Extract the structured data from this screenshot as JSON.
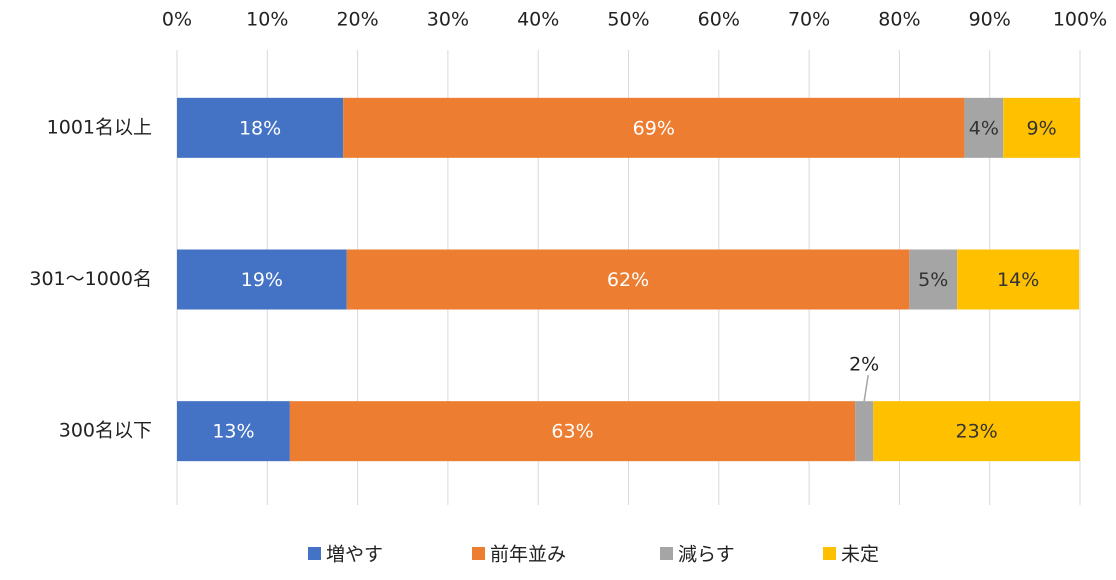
{
  "chart_data": {
    "type": "stacked-bar-horizontal",
    "categories": [
      "1001名以上",
      "301～1000名",
      "300名以下"
    ],
    "series": [
      {
        "name": "増やす",
        "color": "#4472c4",
        "values": [
          18.4,
          18.8,
          12.5
        ],
        "value_labels": [
          "18%",
          "19%",
          "13%"
        ]
      },
      {
        "name": "前年並み",
        "color": "#ed7d31",
        "values": [
          68.8,
          62.3,
          62.6
        ],
        "value_labels": [
          "69%",
          "62%",
          "63%"
        ]
      },
      {
        "name": "減らす",
        "color": "#a5a5a5",
        "values": [
          4.3,
          5.3,
          2.0
        ],
        "value_labels": [
          "4%",
          "5%",
          "2%"
        ]
      },
      {
        "name": "未定",
        "color": "#ffc000",
        "values": [
          8.5,
          13.5,
          22.9
        ],
        "value_labels": [
          "9%",
          "14%",
          "23%"
        ]
      }
    ],
    "xlim": [
      0,
      100
    ],
    "xticks": [
      {
        "value": 0,
        "label": "0%"
      },
      {
        "value": 10,
        "label": "10%"
      },
      {
        "value": 20,
        "label": "20%"
      },
      {
        "value": 30,
        "label": "30%"
      },
      {
        "value": 40,
        "label": "40%"
      },
      {
        "value": 50,
        "label": "50%"
      },
      {
        "value": 60,
        "label": "60%"
      },
      {
        "value": 70,
        "label": "70%"
      },
      {
        "value": 80,
        "label": "80%"
      },
      {
        "value": 90,
        "label": "90%"
      },
      {
        "value": 100,
        "label": "100%"
      }
    ],
    "grid": true,
    "legend": "bottom"
  }
}
